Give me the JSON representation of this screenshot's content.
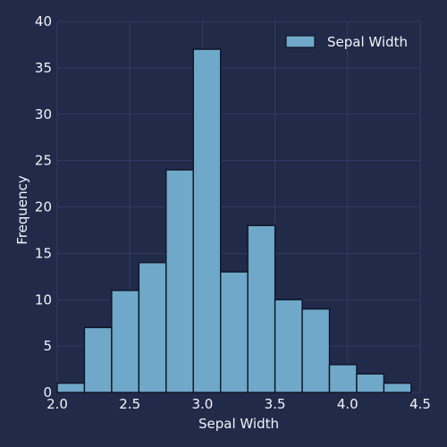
{
  "chart_data": {
    "type": "bar",
    "xlabel": "Sepal Width",
    "ylabel": "Frequency",
    "xlim": [
      2.0,
      4.5
    ],
    "ylim": [
      0,
      40
    ],
    "x_ticks": [
      "2.0",
      "2.5",
      "3.0",
      "3.5",
      "4.0",
      "4.5"
    ],
    "y_ticks": [
      "0",
      "5",
      "10",
      "15",
      "20",
      "25",
      "30",
      "35",
      "40"
    ],
    "grid": true,
    "legend": {
      "position": "top-right",
      "entries": [
        "Sepal Width"
      ]
    },
    "bar_color": "#6fa8c8",
    "bins": [
      {
        "start": 2.0,
        "end": 2.1875,
        "count": 1
      },
      {
        "start": 2.1875,
        "end": 2.375,
        "count": 7
      },
      {
        "start": 2.375,
        "end": 2.5625,
        "count": 11
      },
      {
        "start": 2.5625,
        "end": 2.75,
        "count": 14
      },
      {
        "start": 2.75,
        "end": 2.9375,
        "count": 24
      },
      {
        "start": 2.9375,
        "end": 3.125,
        "count": 37
      },
      {
        "start": 3.125,
        "end": 3.3125,
        "count": 13
      },
      {
        "start": 3.3125,
        "end": 3.5,
        "count": 18
      },
      {
        "start": 3.5,
        "end": 3.6875,
        "count": 10
      },
      {
        "start": 3.6875,
        "end": 3.875,
        "count": 9
      },
      {
        "start": 3.875,
        "end": 4.0625,
        "count": 3
      },
      {
        "start": 4.0625,
        "end": 4.25,
        "count": 2
      },
      {
        "start": 4.25,
        "end": 4.4375,
        "count": 1
      }
    ]
  }
}
